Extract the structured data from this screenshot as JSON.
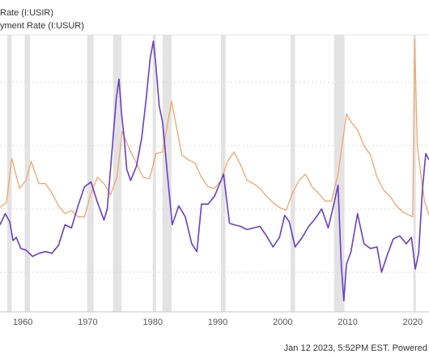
{
  "legend": {
    "series_1_label": "Rate (I:USIR)",
    "series_2_label": "yment Rate (I:USUR)"
  },
  "footer": {
    "text": "Jan 12 2023, 5:52PM EST. Powered"
  },
  "chart_data": {
    "type": "line",
    "x_ticks": [
      "1960",
      "1970",
      "1980",
      "1990",
      "2000",
      "2010",
      "2020"
    ],
    "x_tick_years": [
      1960,
      1970,
      1980,
      1990,
      2000,
      2010,
      2020
    ],
    "xlim": [
      1956.5,
      2022.5
    ],
    "ylim": [
      -2.5,
      15
    ],
    "grid": true,
    "recessions": [
      [
        1957.6,
        1958.3
      ],
      [
        1960.3,
        1961.1
      ],
      [
        1969.9,
        1970.9
      ],
      [
        1973.9,
        1975.2
      ],
      [
        1980.0,
        1980.5
      ],
      [
        1981.5,
        1982.9
      ],
      [
        1990.5,
        1991.2
      ],
      [
        2001.2,
        2001.9
      ],
      [
        2007.9,
        2009.5
      ],
      [
        2020.1,
        2020.4
      ]
    ],
    "series": [
      {
        "name": "Rate (I:USIR)",
        "color": "#6a3fc4",
        "points": [
          [
            1956.5,
            3.0
          ],
          [
            1957.3,
            3.7
          ],
          [
            1958.0,
            3.2
          ],
          [
            1958.5,
            2.0
          ],
          [
            1959.0,
            2.2
          ],
          [
            1959.7,
            1.5
          ],
          [
            1960.5,
            1.4
          ],
          [
            1961.5,
            1.0
          ],
          [
            1962.5,
            1.2
          ],
          [
            1963.5,
            1.3
          ],
          [
            1964.5,
            1.2
          ],
          [
            1965.5,
            1.7
          ],
          [
            1966.5,
            3.0
          ],
          [
            1967.5,
            2.8
          ],
          [
            1968.5,
            4.2
          ],
          [
            1969.5,
            5.4
          ],
          [
            1970.5,
            5.7
          ],
          [
            1971.5,
            4.4
          ],
          [
            1972.5,
            3.3
          ],
          [
            1973.0,
            4.0
          ],
          [
            1973.5,
            6.5
          ],
          [
            1974.0,
            9.0
          ],
          [
            1974.4,
            11.0
          ],
          [
            1974.8,
            12.2
          ],
          [
            1975.2,
            10.0
          ],
          [
            1975.6,
            8.5
          ],
          [
            1976.0,
            6.5
          ],
          [
            1976.6,
            5.8
          ],
          [
            1977.5,
            6.7
          ],
          [
            1978.3,
            8.5
          ],
          [
            1979.0,
            11.0
          ],
          [
            1979.6,
            13.5
          ],
          [
            1980.1,
            14.6
          ],
          [
            1980.5,
            13.0
          ],
          [
            1981.0,
            10.5
          ],
          [
            1981.5,
            9.5
          ],
          [
            1982.3,
            6.0
          ],
          [
            1983.0,
            3.0
          ],
          [
            1984.0,
            4.2
          ],
          [
            1985.0,
            3.5
          ],
          [
            1986.0,
            1.8
          ],
          [
            1986.8,
            1.3
          ],
          [
            1987.5,
            4.3
          ],
          [
            1988.5,
            4.3
          ],
          [
            1989.5,
            4.8
          ],
          [
            1990.0,
            5.3
          ],
          [
            1990.9,
            6.2
          ],
          [
            1991.8,
            3.1
          ],
          [
            1992.5,
            3.0
          ],
          [
            1993.5,
            2.9
          ],
          [
            1994.5,
            2.7
          ],
          [
            1995.5,
            2.8
          ],
          [
            1996.5,
            2.9
          ],
          [
            1997.5,
            2.3
          ],
          [
            1998.5,
            1.6
          ],
          [
            1999.5,
            2.2
          ],
          [
            2000.3,
            3.6
          ],
          [
            2001.0,
            3.2
          ],
          [
            2001.9,
            1.6
          ],
          [
            2003.0,
            2.2
          ],
          [
            2004.0,
            2.9
          ],
          [
            2005.0,
            3.4
          ],
          [
            2006.0,
            4.0
          ],
          [
            2007.0,
            2.8
          ],
          [
            2007.8,
            4.2
          ],
          [
            2008.5,
            5.5
          ],
          [
            2009.0,
            0.5
          ],
          [
            2009.4,
            -1.8
          ],
          [
            2009.8,
            0.5
          ],
          [
            2010.5,
            1.3
          ],
          [
            2011.5,
            3.7
          ],
          [
            2012.5,
            1.8
          ],
          [
            2013.5,
            1.5
          ],
          [
            2014.5,
            1.6
          ],
          [
            2015.2,
            0.0
          ],
          [
            2016.0,
            1.0
          ],
          [
            2017.0,
            2.1
          ],
          [
            2018.0,
            2.3
          ],
          [
            2019.0,
            1.8
          ],
          [
            2019.8,
            2.2
          ],
          [
            2020.4,
            0.2
          ],
          [
            2020.9,
            1.2
          ],
          [
            2021.5,
            5.3
          ],
          [
            2022.0,
            7.5
          ],
          [
            2022.5,
            7.1
          ]
        ]
      },
      {
        "name": "yment Rate (I:USUR)",
        "color": "#f4a56e",
        "points": [
          [
            1956.5,
            4.1
          ],
          [
            1957.5,
            4.4
          ],
          [
            1958.3,
            7.2
          ],
          [
            1959.5,
            5.3
          ],
          [
            1960.5,
            5.8
          ],
          [
            1961.3,
            7.0
          ],
          [
            1962.5,
            5.6
          ],
          [
            1963.5,
            5.6
          ],
          [
            1964.5,
            5.0
          ],
          [
            1965.5,
            4.2
          ],
          [
            1966.5,
            3.7
          ],
          [
            1967.5,
            3.9
          ],
          [
            1968.5,
            3.5
          ],
          [
            1969.5,
            3.5
          ],
          [
            1970.5,
            5.0
          ],
          [
            1971.5,
            6.0
          ],
          [
            1972.5,
            5.6
          ],
          [
            1973.5,
            4.9
          ],
          [
            1974.5,
            6.0
          ],
          [
            1975.3,
            8.9
          ],
          [
            1976.5,
            7.7
          ],
          [
            1977.5,
            6.9
          ],
          [
            1978.5,
            6.0
          ],
          [
            1979.5,
            5.9
          ],
          [
            1980.5,
            7.5
          ],
          [
            1981.5,
            7.6
          ],
          [
            1982.9,
            10.8
          ],
          [
            1983.5,
            9.5
          ],
          [
            1984.5,
            7.4
          ],
          [
            1985.5,
            7.1
          ],
          [
            1986.5,
            6.9
          ],
          [
            1987.5,
            6.0
          ],
          [
            1988.5,
            5.4
          ],
          [
            1989.5,
            5.3
          ],
          [
            1990.5,
            5.8
          ],
          [
            1991.5,
            7.0
          ],
          [
            1992.5,
            7.6
          ],
          [
            1993.5,
            6.8
          ],
          [
            1994.5,
            5.8
          ],
          [
            1995.5,
            5.6
          ],
          [
            1996.5,
            5.3
          ],
          [
            1997.5,
            4.8
          ],
          [
            1998.5,
            4.4
          ],
          [
            1999.5,
            4.1
          ],
          [
            2000.5,
            3.9
          ],
          [
            2001.5,
            5.0
          ],
          [
            2002.5,
            5.8
          ],
          [
            2003.5,
            6.2
          ],
          [
            2004.5,
            5.4
          ],
          [
            2005.5,
            5.0
          ],
          [
            2006.5,
            4.5
          ],
          [
            2007.5,
            4.5
          ],
          [
            2008.5,
            6.2
          ],
          [
            2009.8,
            10.0
          ],
          [
            2010.5,
            9.5
          ],
          [
            2011.5,
            9.0
          ],
          [
            2012.5,
            8.0
          ],
          [
            2013.5,
            7.4
          ],
          [
            2014.5,
            6.0
          ],
          [
            2015.5,
            5.2
          ],
          [
            2016.5,
            4.8
          ],
          [
            2017.5,
            4.2
          ],
          [
            2018.5,
            3.8
          ],
          [
            2019.5,
            3.6
          ],
          [
            2020.0,
            3.5
          ],
          [
            2020.3,
            14.7
          ],
          [
            2020.7,
            8.0
          ],
          [
            2021.3,
            6.0
          ],
          [
            2021.8,
            4.5
          ],
          [
            2022.5,
            3.6
          ]
        ]
      }
    ]
  }
}
